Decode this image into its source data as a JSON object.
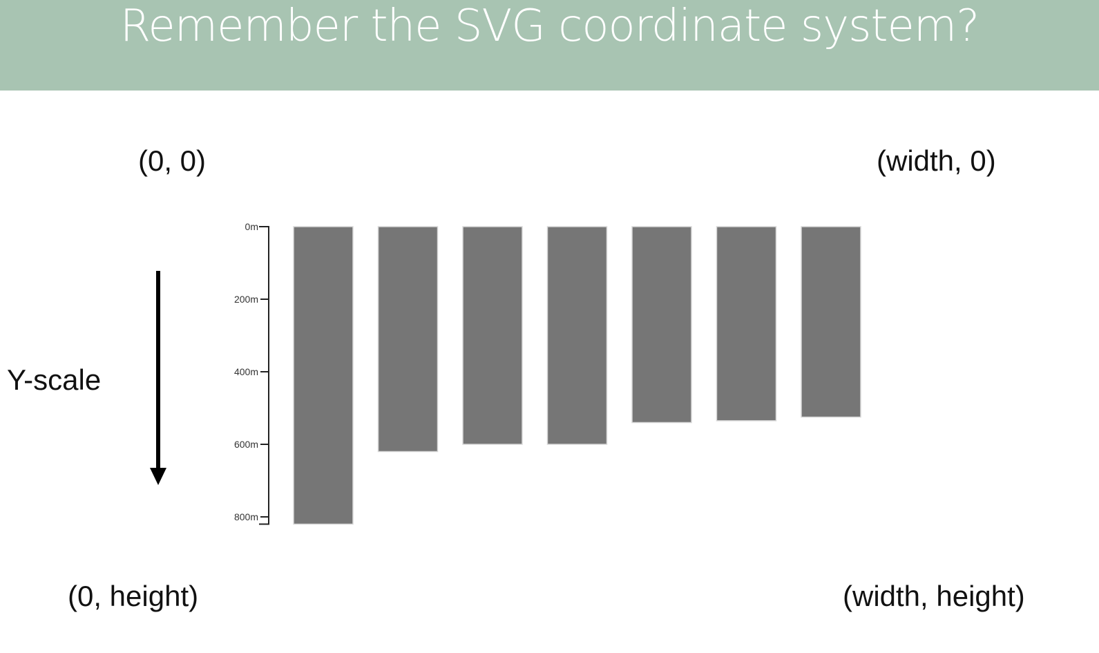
{
  "title": "Remember the SVG coordinate system?",
  "corners": {
    "top_left": "(0, 0)",
    "top_right": "(width, 0)",
    "bottom_left": "(0, height)",
    "bottom_right": "(width, height)"
  },
  "yscale_label": "Y-scale",
  "colors": {
    "title_band": "#a8c4b2",
    "bar_fill": "#767676",
    "text": "#111111"
  },
  "chart_data": {
    "type": "bar",
    "orientation": "top-down",
    "y_tick_labels": [
      "0m",
      "200m",
      "400m",
      "600m",
      "800m"
    ],
    "y_ticks": [
      0,
      200,
      400,
      600,
      800
    ],
    "ylim": [
      0,
      800
    ],
    "values": [
      820,
      620,
      600,
      600,
      540,
      535,
      525
    ],
    "grid": false
  }
}
